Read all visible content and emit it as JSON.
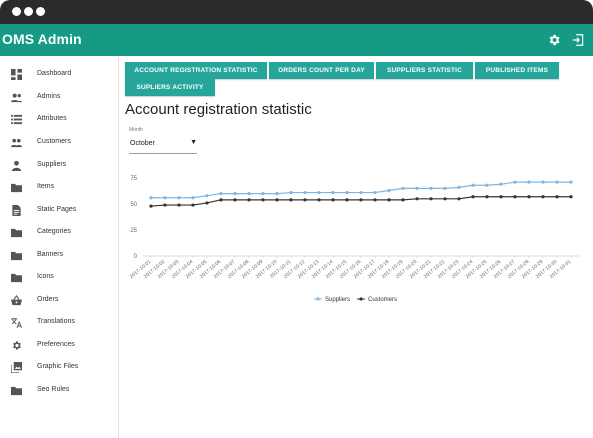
{
  "app": {
    "title": "OMS Admin"
  },
  "toolbar": {
    "settings_icon": "gear-icon",
    "logout_icon": "logout-icon"
  },
  "sidebar": {
    "items": [
      {
        "label": "Dashboard",
        "icon": "dashboard-icon"
      },
      {
        "label": "Admins",
        "icon": "admins-icon"
      },
      {
        "label": "Attributes",
        "icon": "list-icon"
      },
      {
        "label": "Customers",
        "icon": "customers-icon"
      },
      {
        "label": "Suppliers",
        "icon": "person-icon"
      },
      {
        "label": "Items",
        "icon": "folder-icon"
      },
      {
        "label": "Static Pages",
        "icon": "document-icon"
      },
      {
        "label": "Categories",
        "icon": "folder-icon"
      },
      {
        "label": "Banners",
        "icon": "folder-icon"
      },
      {
        "label": "Icons",
        "icon": "folder-icon"
      },
      {
        "label": "Orders",
        "icon": "basket-icon"
      },
      {
        "label": "Translations",
        "icon": "translate-icon"
      },
      {
        "label": "Preferences",
        "icon": "gear-icon"
      },
      {
        "label": "Graphic Files",
        "icon": "image-library-icon"
      },
      {
        "label": "Seo Rules",
        "icon": "folder-icon"
      }
    ]
  },
  "tabs": [
    {
      "label": "ACCOUNT REGISTRATION STATISTIC"
    },
    {
      "label": "ORDERS COUNT PER DAY"
    },
    {
      "label": "SUPPLIERS STATISTIC"
    },
    {
      "label": "PUBLISHED ITEMS"
    },
    {
      "label": "SUPLIERS ACTIVITY"
    }
  ],
  "page": {
    "title": "Account registration statistic"
  },
  "filter": {
    "label": "Month",
    "value": "October"
  },
  "colors": {
    "accent": "#159a86",
    "tab": "#26a69a",
    "suppliers": "#7eb6e6",
    "customers": "#333333"
  },
  "chart_data": {
    "type": "line",
    "x": [
      "2017-10-01",
      "2017-10-02",
      "2017-10-03",
      "2017-10-04",
      "2017-10-05",
      "2017-10-06",
      "2017-10-07",
      "2017-10-08",
      "2017-10-09",
      "2017-10-10",
      "2017-10-11",
      "2017-10-12",
      "2017-10-13",
      "2017-10-14",
      "2017-10-15",
      "2017-10-16",
      "2017-10-17",
      "2017-10-18",
      "2017-10-19",
      "2017-10-20",
      "2017-10-21",
      "2017-10-22",
      "2017-10-23",
      "2017-10-24",
      "2017-10-25",
      "2017-10-26",
      "2017-10-27",
      "2017-10-28",
      "2017-10-29",
      "2017-10-30",
      "2017-10-31"
    ],
    "series": [
      {
        "name": "Suppliers",
        "values": [
          56,
          56,
          56,
          56,
          58,
          60,
          60,
          60,
          60,
          60,
          61,
          61,
          61,
          61,
          61,
          61,
          61,
          63,
          65,
          65,
          65,
          65,
          66,
          68,
          68,
          69,
          71,
          71,
          71,
          71,
          71
        ]
      },
      {
        "name": "Customers",
        "values": [
          48,
          49,
          49,
          49,
          51,
          54,
          54,
          54,
          54,
          54,
          54,
          54,
          54,
          54,
          54,
          54,
          54,
          54,
          54,
          55,
          55,
          55,
          55,
          57,
          57,
          57,
          57,
          57,
          57,
          57,
          57
        ]
      }
    ],
    "yticks": [
      0,
      25,
      50,
      75
    ],
    "ylim": [
      0,
      75
    ],
    "grid": false,
    "legend": "bottom"
  }
}
